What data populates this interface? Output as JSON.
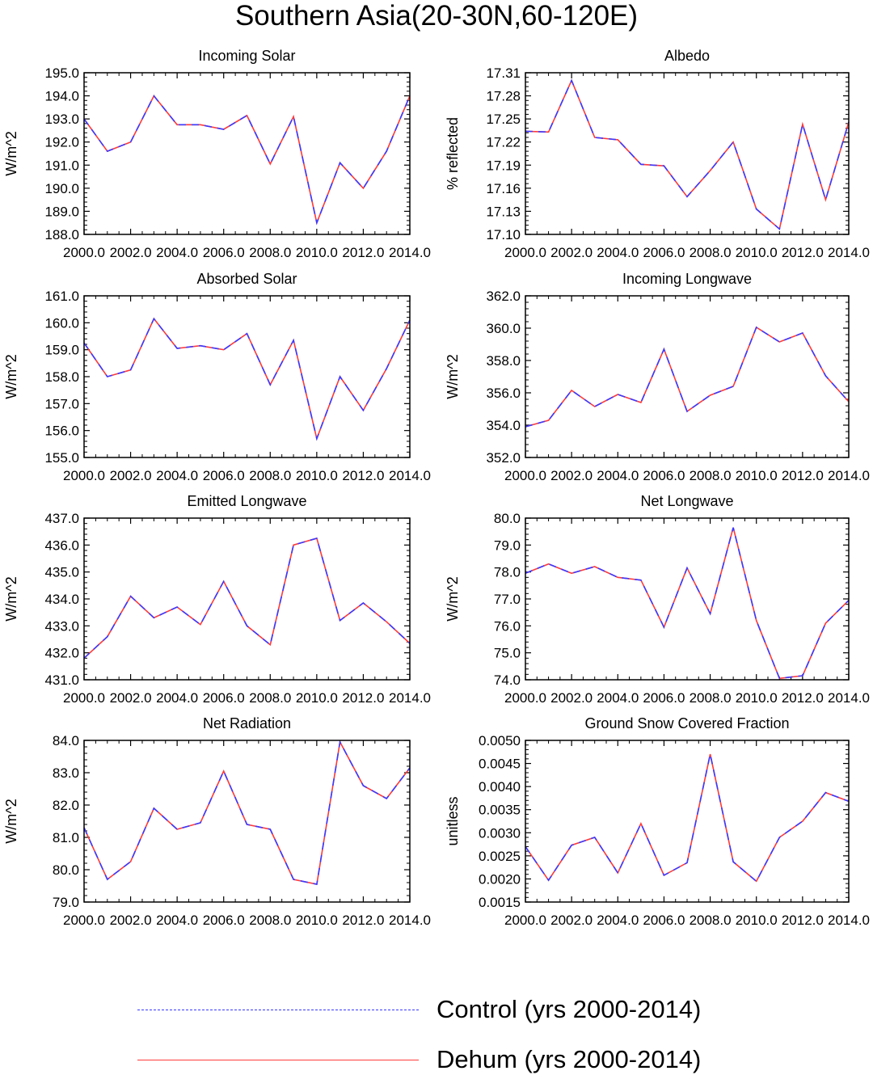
{
  "title": "Southern Asia(20-30N,60-120E)",
  "colors": {
    "control": "#3a3aff",
    "dehum": "#ff3a3a",
    "axis": "#000000"
  },
  "legend": {
    "control_label": "Control (yrs 2000-2014)",
    "dehum_label": "Dehum (yrs 2000-2014)"
  },
  "chart_data": [
    {
      "type": "line",
      "title": "Incoming Solar",
      "ylabel": "W/m^2",
      "xlabel": "",
      "x": [
        2000,
        2001,
        2002,
        2003,
        2004,
        2005,
        2006,
        2007,
        2008,
        2009,
        2010,
        2011,
        2012,
        2013,
        2014
      ],
      "xticks": [
        "2000.0",
        "2002.0",
        "2004.0",
        "2006.0",
        "2008.0",
        "2010.0",
        "2012.0",
        "2014.0"
      ],
      "xlim": [
        2000,
        2014
      ],
      "ylim": [
        188.0,
        195.0
      ],
      "yticks": [
        "188.0",
        "189.0",
        "190.0",
        "191.0",
        "192.0",
        "193.0",
        "194.0",
        "195.0"
      ],
      "series": [
        {
          "name": "Control (yrs 2000-2014)",
          "values": [
            193.0,
            191.6,
            192.0,
            194.0,
            192.75,
            192.75,
            192.55,
            193.15,
            191.05,
            193.1,
            188.5,
            191.1,
            190.0,
            191.6,
            194.0
          ]
        },
        {
          "name": "Dehum (yrs 2000-2014)",
          "values": [
            193.0,
            191.6,
            192.0,
            194.0,
            192.75,
            192.75,
            192.55,
            193.15,
            191.05,
            193.1,
            188.5,
            191.1,
            190.0,
            191.6,
            194.0
          ]
        }
      ]
    },
    {
      "type": "line",
      "title": "Albedo",
      "ylabel": "% reflected",
      "xlabel": "",
      "x": [
        2000,
        2001,
        2002,
        2003,
        2004,
        2005,
        2006,
        2007,
        2008,
        2009,
        2010,
        2011,
        2012,
        2013,
        2014
      ],
      "xticks": [
        "2000.0",
        "2002.0",
        "2004.0",
        "2006.0",
        "2008.0",
        "2010.0",
        "2012.0",
        "2014.0"
      ],
      "xlim": [
        2000,
        2014
      ],
      "ylim": [
        17.1,
        17.31
      ],
      "yticks": [
        "17.10",
        "17.13",
        "17.16",
        "17.19",
        "17.22",
        "17.25",
        "17.28",
        "17.31"
      ],
      "series": [
        {
          "name": "Control (yrs 2000-2014)",
          "values": [
            17.234,
            17.233,
            17.3,
            17.226,
            17.223,
            17.191,
            17.189,
            17.149,
            17.183,
            17.22,
            17.133,
            17.107,
            17.243,
            17.145,
            17.246
          ]
        },
        {
          "name": "Dehum (yrs 2000-2014)",
          "values": [
            17.234,
            17.233,
            17.3,
            17.226,
            17.223,
            17.191,
            17.189,
            17.149,
            17.183,
            17.22,
            17.133,
            17.107,
            17.243,
            17.145,
            17.246
          ]
        }
      ]
    },
    {
      "type": "line",
      "title": "Absorbed Solar",
      "ylabel": "W/m^2",
      "xlabel": "",
      "x": [
        2000,
        2001,
        2002,
        2003,
        2004,
        2005,
        2006,
        2007,
        2008,
        2009,
        2010,
        2011,
        2012,
        2013,
        2014
      ],
      "xticks": [
        "2000.0",
        "2002.0",
        "2004.0",
        "2006.0",
        "2008.0",
        "2010.0",
        "2012.0",
        "2014.0"
      ],
      "xlim": [
        2000,
        2014
      ],
      "ylim": [
        155.0,
        161.0
      ],
      "yticks": [
        "155.0",
        "156.0",
        "157.0",
        "158.0",
        "159.0",
        "160.0",
        "161.0"
      ],
      "series": [
        {
          "name": "Control (yrs 2000-2014)",
          "values": [
            159.25,
            158.0,
            158.25,
            160.15,
            159.05,
            159.15,
            159.0,
            159.6,
            157.7,
            159.35,
            155.7,
            158.0,
            156.75,
            158.3,
            160.1
          ]
        },
        {
          "name": "Dehum (yrs 2000-2014)",
          "values": [
            159.25,
            158.0,
            158.25,
            160.15,
            159.05,
            159.15,
            159.0,
            159.6,
            157.7,
            159.35,
            155.7,
            158.0,
            156.75,
            158.3,
            160.1
          ]
        }
      ]
    },
    {
      "type": "line",
      "title": "Incoming Longwave",
      "ylabel": "W/m^2",
      "xlabel": "",
      "x": [
        2000,
        2001,
        2002,
        2003,
        2004,
        2005,
        2006,
        2007,
        2008,
        2009,
        2010,
        2011,
        2012,
        2013,
        2014
      ],
      "xticks": [
        "2000.0",
        "2002.0",
        "2004.0",
        "2006.0",
        "2008.0",
        "2010.0",
        "2012.0",
        "2014.0"
      ],
      "xlim": [
        2000,
        2014
      ],
      "ylim": [
        352.0,
        362.0
      ],
      "yticks": [
        "352.0",
        "354.0",
        "356.0",
        "358.0",
        "360.0",
        "362.0"
      ],
      "series": [
        {
          "name": "Control (yrs 2000-2014)",
          "values": [
            353.9,
            354.3,
            356.15,
            355.15,
            355.9,
            355.4,
            358.7,
            354.85,
            355.85,
            356.4,
            360.05,
            359.15,
            359.7,
            357.05,
            355.45
          ]
        },
        {
          "name": "Dehum (yrs 2000-2014)",
          "values": [
            353.9,
            354.3,
            356.15,
            355.15,
            355.9,
            355.4,
            358.7,
            354.85,
            355.85,
            356.4,
            360.05,
            359.15,
            359.7,
            357.05,
            355.45
          ]
        }
      ]
    },
    {
      "type": "line",
      "title": "Emitted Longwave",
      "ylabel": "W/m^2",
      "xlabel": "",
      "x": [
        2000,
        2001,
        2002,
        2003,
        2004,
        2005,
        2006,
        2007,
        2008,
        2009,
        2010,
        2011,
        2012,
        2013,
        2014
      ],
      "xticks": [
        "2000.0",
        "2002.0",
        "2004.0",
        "2006.0",
        "2008.0",
        "2010.0",
        "2012.0",
        "2014.0"
      ],
      "xlim": [
        2000,
        2014
      ],
      "ylim": [
        431.0,
        437.0
      ],
      "yticks": [
        "431.0",
        "432.0",
        "433.0",
        "434.0",
        "435.0",
        "436.0",
        "437.0"
      ],
      "series": [
        {
          "name": "Control (yrs 2000-2014)",
          "values": [
            431.8,
            432.6,
            434.1,
            433.3,
            433.7,
            433.05,
            434.65,
            433.0,
            432.3,
            436.0,
            436.25,
            433.2,
            433.85,
            433.15,
            432.35
          ]
        },
        {
          "name": "Dehum (yrs 2000-2014)",
          "values": [
            431.8,
            432.6,
            434.1,
            433.3,
            433.7,
            433.05,
            434.65,
            433.0,
            432.3,
            436.0,
            436.25,
            433.2,
            433.85,
            433.15,
            432.35
          ]
        }
      ]
    },
    {
      "type": "line",
      "title": "Net Longwave",
      "ylabel": "W/m^2",
      "xlabel": "",
      "x": [
        2000,
        2001,
        2002,
        2003,
        2004,
        2005,
        2006,
        2007,
        2008,
        2009,
        2010,
        2011,
        2012,
        2013,
        2014
      ],
      "xticks": [
        "2000.0",
        "2002.0",
        "2004.0",
        "2006.0",
        "2008.0",
        "2010.0",
        "2012.0",
        "2014.0"
      ],
      "xlim": [
        2000,
        2014
      ],
      "ylim": [
        74.0,
        80.0
      ],
      "yticks": [
        "74.0",
        "75.0",
        "76.0",
        "77.0",
        "78.0",
        "79.0",
        "80.0"
      ],
      "series": [
        {
          "name": "Control (yrs 2000-2014)",
          "values": [
            77.95,
            78.3,
            77.95,
            78.2,
            77.8,
            77.7,
            75.95,
            78.15,
            76.45,
            79.65,
            76.2,
            74.05,
            74.15,
            76.1,
            76.95
          ]
        },
        {
          "name": "Dehum (yrs 2000-2014)",
          "values": [
            77.95,
            78.3,
            77.95,
            78.2,
            77.8,
            77.7,
            75.95,
            78.15,
            76.45,
            79.65,
            76.2,
            74.05,
            74.15,
            76.1,
            76.95
          ]
        }
      ]
    },
    {
      "type": "line",
      "title": "Net Radiation",
      "ylabel": "W/m^2",
      "xlabel": "",
      "x": [
        2000,
        2001,
        2002,
        2003,
        2004,
        2005,
        2006,
        2007,
        2008,
        2009,
        2010,
        2011,
        2012,
        2013,
        2014
      ],
      "xticks": [
        "2000.0",
        "2002.0",
        "2004.0",
        "2006.0",
        "2008.0",
        "2010.0",
        "2012.0",
        "2014.0"
      ],
      "xlim": [
        2000,
        2014
      ],
      "ylim": [
        79.0,
        84.0
      ],
      "yticks": [
        "79.0",
        "80.0",
        "81.0",
        "82.0",
        "83.0",
        "84.0"
      ],
      "series": [
        {
          "name": "Control (yrs 2000-2014)",
          "values": [
            81.3,
            79.7,
            80.25,
            81.9,
            81.25,
            81.45,
            83.05,
            81.4,
            81.25,
            79.7,
            79.55,
            83.95,
            82.6,
            82.2,
            83.15
          ]
        },
        {
          "name": "Dehum (yrs 2000-2014)",
          "values": [
            81.3,
            79.7,
            80.25,
            81.9,
            81.25,
            81.45,
            83.05,
            81.4,
            81.25,
            79.7,
            79.55,
            83.95,
            82.6,
            82.2,
            83.15
          ]
        }
      ]
    },
    {
      "type": "line",
      "title": "Ground Snow Covered Fraction",
      "ylabel": "unitless",
      "xlabel": "",
      "x": [
        2000,
        2001,
        2002,
        2003,
        2004,
        2005,
        2006,
        2007,
        2008,
        2009,
        2010,
        2011,
        2012,
        2013,
        2014
      ],
      "xticks": [
        "2000.0",
        "2002.0",
        "2004.0",
        "2006.0",
        "2008.0",
        "2010.0",
        "2012.0",
        "2014.0"
      ],
      "xlim": [
        2000,
        2014
      ],
      "ylim": [
        0.0015,
        0.005
      ],
      "yticks": [
        "0.0015",
        "0.0020",
        "0.0025",
        "0.0030",
        "0.0035",
        "0.0040",
        "0.0045",
        "0.0050"
      ],
      "series": [
        {
          "name": "Control (yrs 2000-2014)",
          "values": [
            0.0027,
            0.00197,
            0.00273,
            0.0029,
            0.00213,
            0.0032,
            0.00208,
            0.00235,
            0.0047,
            0.00237,
            0.00195,
            0.0029,
            0.00325,
            0.00387,
            0.00368
          ]
        },
        {
          "name": "Dehum (yrs 2000-2014)",
          "values": [
            0.0027,
            0.00197,
            0.00273,
            0.0029,
            0.00213,
            0.0032,
            0.00208,
            0.00235,
            0.0047,
            0.00237,
            0.00195,
            0.0029,
            0.00325,
            0.00387,
            0.00368
          ]
        }
      ]
    }
  ]
}
